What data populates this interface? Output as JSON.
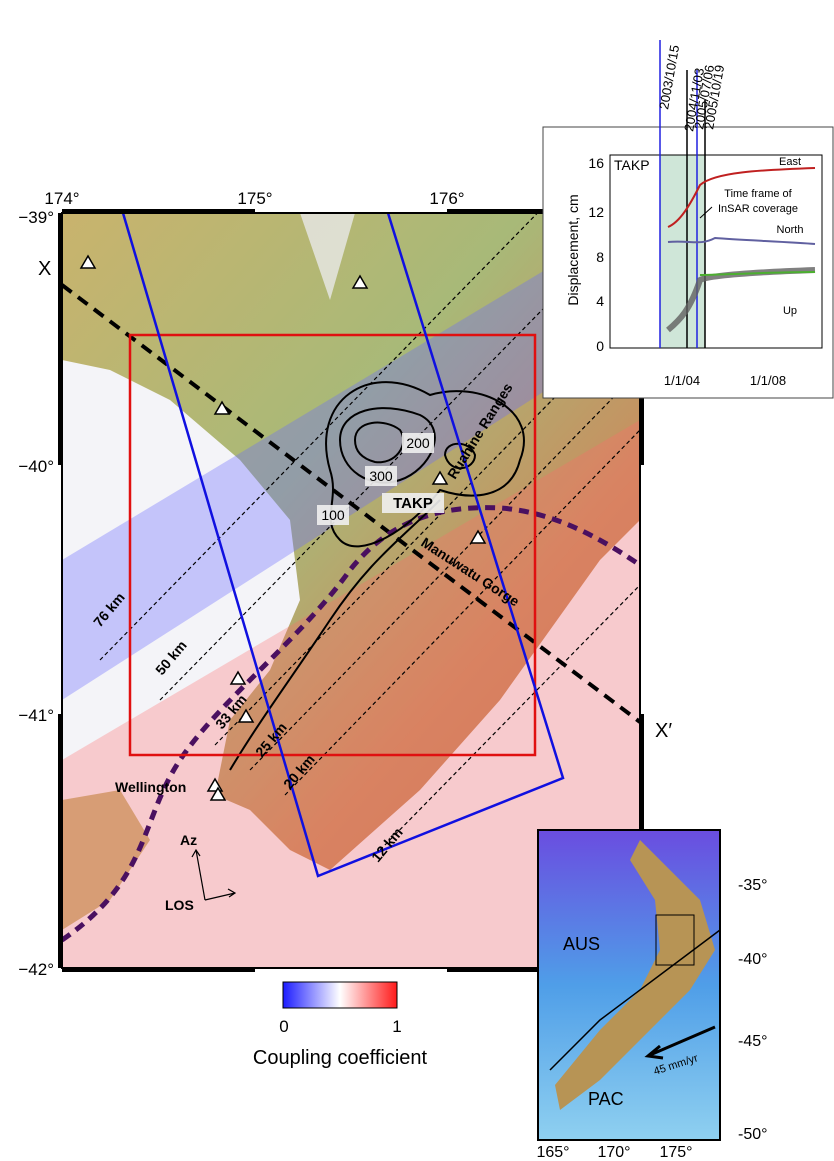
{
  "main_map": {
    "lon_ticks": [
      "174°",
      "175°",
      "176°"
    ],
    "lat_ticks": [
      "−39°",
      "−40°",
      "−41°",
      "−42°"
    ],
    "profile_start": "X",
    "profile_end": "X′",
    "profile_distances": [
      "76 km",
      "50 km",
      "33 km",
      "25 km",
      "20 km",
      "12 km"
    ],
    "contour_labels": [
      "100",
      "200",
      "300"
    ],
    "station": "TAKP",
    "place_labels": [
      "Ruahine Ranges",
      "Manuwatu Gorge",
      "Wellington"
    ],
    "azimuth": "Az",
    "line_of_sight": "LOS"
  },
  "colorbar": {
    "min_label": "0",
    "max_label": "1",
    "title": "Coupling coefficient"
  },
  "time_series_inset": {
    "dates": [
      "2003/10/15",
      "2004/11/03",
      "2005/07/06",
      "2005/10/19"
    ],
    "station": "TAKP",
    "y_label": "Displacement, cm",
    "y_ticks": [
      "0",
      "4",
      "8",
      "12",
      "16"
    ],
    "x_ticks": [
      "1/1/04",
      "1/1/08"
    ],
    "components": [
      "East",
      "North",
      "Up"
    ],
    "annotation": [
      "Time frame of",
      "InSAR coverage"
    ]
  },
  "location_inset": {
    "plates": [
      "AUS",
      "PAC"
    ],
    "rate": "45 mm/yr",
    "lat_ticks": [
      "-35°",
      "-40°",
      "-45°",
      "-50°"
    ],
    "lon_ticks": [
      "165°",
      "170°",
      "175°"
    ]
  }
}
